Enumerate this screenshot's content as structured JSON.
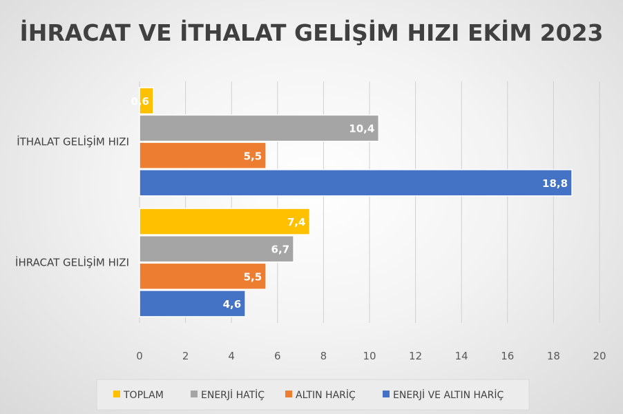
{
  "chart_data": {
    "type": "bar",
    "orientation": "horizontal",
    "title": "İHRACAT VE İTHALAT GELİŞİM HIZI EKİM 2023",
    "categories": [
      "İTHALAT GELİŞİM HIZI",
      "İHRACAT GELİŞİM HIZI"
    ],
    "series": [
      {
        "name": "TOPLAM",
        "values": [
          0.6,
          7.4
        ],
        "labels": [
          "0,6",
          "7,4"
        ],
        "color": "#FFC000"
      },
      {
        "name": "ENERJİ HATİÇ",
        "values": [
          10.4,
          6.7
        ],
        "labels": [
          "10,4",
          "6,7"
        ],
        "color": "#A5A5A5"
      },
      {
        "name": "ALTIN HARİÇ",
        "values": [
          5.5,
          5.5
        ],
        "labels": [
          "5,5",
          "5,5"
        ],
        "color": "#ED7D31"
      },
      {
        "name": "ENERJİ VE ALTIN HARİÇ",
        "values": [
          18.8,
          4.6
        ],
        "labels": [
          "18,8",
          "4,6"
        ],
        "color": "#4472C4"
      }
    ],
    "xlim": [
      0,
      20
    ],
    "xticks": [
      "0",
      "2",
      "4",
      "6",
      "8",
      "10",
      "12",
      "14",
      "16",
      "18",
      "20"
    ],
    "grid": true,
    "legend": "bottom"
  }
}
